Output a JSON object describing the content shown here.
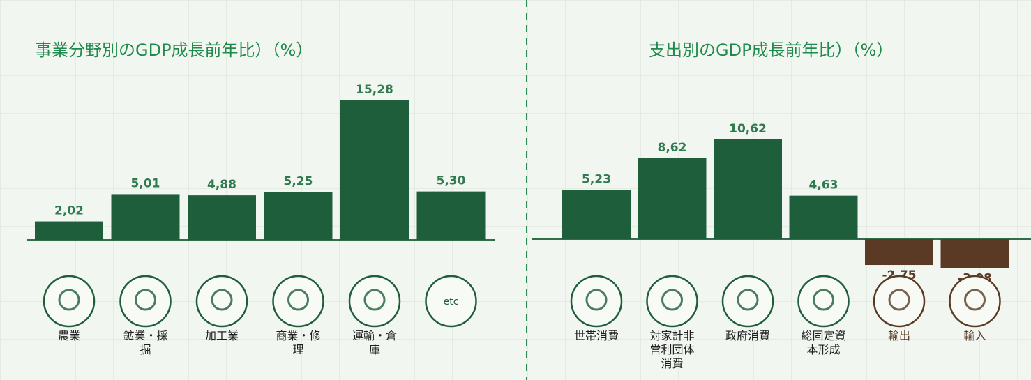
{
  "chart_data": [
    {
      "type": "bar",
      "title": "事業分野別のGDP成長前年比）（%）",
      "categories": [
        "農業",
        "鉱業・採掘",
        "加工業",
        "商業・修理",
        "運輸・倉庫",
        null
      ],
      "values": [
        2.02,
        5.01,
        4.88,
        5.25,
        15.28,
        5.3
      ],
      "value_labels": [
        "2,02",
        "5,01",
        "4,88",
        "5,25",
        "15,28",
        "5,30"
      ],
      "icon_text": "etc",
      "colors": [
        "#1e5e3b",
        "#1e5e3b",
        "#1e5e3b",
        "#1e5e3b",
        "#1e5e3b",
        "#1e5e3b"
      ]
    },
    {
      "type": "bar",
      "title": "支出別のGDP成長前年比）（%）",
      "categories": [
        "世帯消費",
        "対家計非営利団体消費",
        "政府消費",
        "総固定資本形成",
        "輸出",
        "輸入"
      ],
      "values": [
        5.23,
        8.62,
        10.62,
        4.63,
        -2.75,
        -3.08
      ],
      "value_labels": [
        "5,23",
        "8,62",
        "10,62",
        "4,63",
        "-2,75",
        "-3,08"
      ],
      "colors": [
        "#1e5e3b",
        "#1e5e3b",
        "#1e5e3b",
        "#1e5e3b",
        "#5a3a24",
        "#5a3a24"
      ]
    }
  ]
}
